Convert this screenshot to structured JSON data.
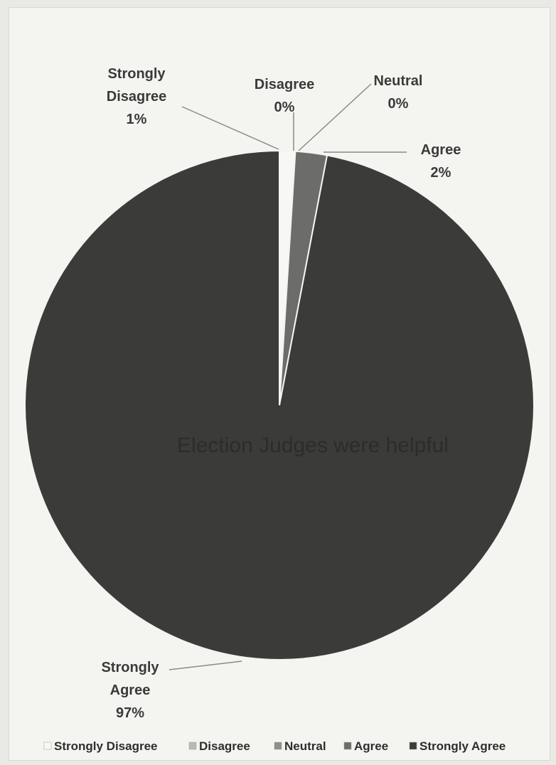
{
  "chart_data": {
    "type": "pie",
    "title": "Election Judges were helpful",
    "slices": [
      {
        "label": "Strongly Disagree",
        "value": 1,
        "pct_label": "1%",
        "color": "#f7f7f4"
      },
      {
        "label": "Disagree",
        "value": 0,
        "pct_label": "0%",
        "color": "#b9b9b6"
      },
      {
        "label": "Neutral",
        "value": 0,
        "pct_label": "0%",
        "color": "#8e8e8b"
      },
      {
        "label": "Agree",
        "value": 2,
        "pct_label": "2%",
        "color": "#6c6c6a"
      },
      {
        "label": "Strongly Agree",
        "value": 97,
        "pct_label": "97%",
        "color": "#3b3b3a"
      }
    ],
    "legend_position": "bottom"
  }
}
